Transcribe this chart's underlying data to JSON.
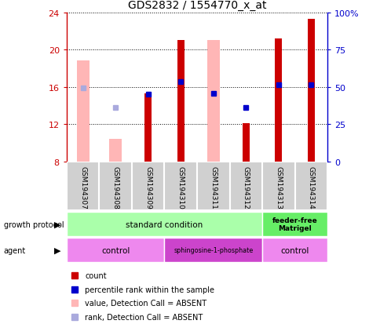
{
  "title": "GDS2832 / 1554770_x_at",
  "samples": [
    "GSM194307",
    "GSM194308",
    "GSM194309",
    "GSM194310",
    "GSM194311",
    "GSM194312",
    "GSM194313",
    "GSM194314"
  ],
  "ylim": [
    8,
    24
  ],
  "yticks_left": [
    8,
    12,
    16,
    20,
    24
  ],
  "yticks_right": [
    0,
    25,
    50,
    75,
    100
  ],
  "ylim_right": [
    0,
    100
  ],
  "red_bars": {
    "values": [
      null,
      null,
      15.3,
      21.0,
      null,
      12.1,
      21.2,
      23.3
    ],
    "color": "#cc0000"
  },
  "pink_bars": {
    "values": [
      18.8,
      10.4,
      null,
      null,
      21.0,
      null,
      null,
      null
    ],
    "color": "#ffb6b6"
  },
  "blue_squares": {
    "values": [
      null,
      null,
      15.2,
      16.6,
      15.3,
      13.8,
      16.2,
      16.2
    ],
    "color": "#0000cc"
  },
  "light_blue_squares": {
    "values": [
      15.9,
      13.8,
      null,
      null,
      null,
      null,
      null,
      null
    ],
    "color": "#aaaadd"
  },
  "legend_items": [
    {
      "label": "count",
      "color": "#cc0000"
    },
    {
      "label": "percentile rank within the sample",
      "color": "#0000cc"
    },
    {
      "label": "value, Detection Call = ABSENT",
      "color": "#ffb6b6"
    },
    {
      "label": "rank, Detection Call = ABSENT",
      "color": "#aaaadd"
    }
  ],
  "left_axis_color": "#cc0000",
  "right_axis_color": "#0000cc",
  "growth_standard_color": "#aaffaa",
  "growth_feeder_color": "#66ee66",
  "agent_control_color": "#ee88ee",
  "agent_sphingo_color": "#cc44cc",
  "sample_box_color": "#d0d0d0"
}
